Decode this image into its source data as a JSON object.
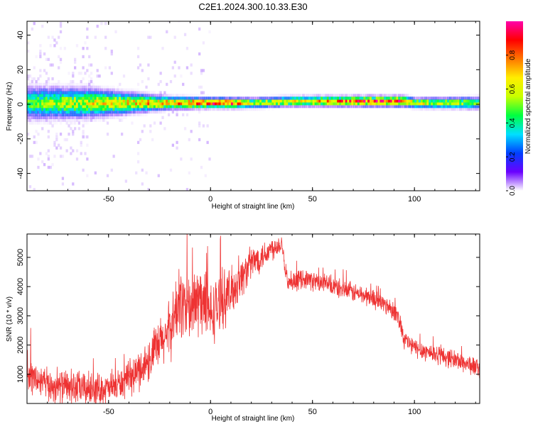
{
  "title": "C2E1.2024.300.10.33.E30",
  "colors": {
    "frame": "#000000",
    "snr_line": "#ee3333",
    "background": "#ffffff"
  },
  "chart_data": [
    {
      "type": "heatmap",
      "xlabel": "Height of straight line (km)",
      "ylabel": "Frequency (Hz)",
      "xlim": [
        -90,
        132
      ],
      "ylim": [
        -50,
        48
      ],
      "xticks": [
        -50,
        0,
        50,
        100
      ],
      "yticks": [
        -40,
        -20,
        0,
        20,
        40
      ],
      "grid": false,
      "colorbar": {
        "label": "Normalized spectral amplitude",
        "range": [
          0,
          1
        ],
        "ticks": [
          0.0,
          0.2,
          0.4,
          0.6,
          0.8
        ],
        "tick_labels": [
          "0.0",
          "0.2",
          "0.4",
          "0.6",
          "0.8"
        ],
        "colormap": [
          "#ffffff",
          "#6a00ff",
          "#0040ff",
          "#00e0ff",
          "#00ff40",
          "#c8ff00",
          "#ffee00",
          "#ff7700",
          "#ff0000",
          "#ff00aa"
        ]
      },
      "ridge": {
        "description_points_x": [
          -90,
          -60,
          -40,
          -20,
          0,
          10,
          20,
          40,
          60,
          80,
          94,
          100,
          132
        ],
        "center_freq": [
          0,
          0,
          0,
          0,
          0,
          0,
          0,
          1,
          1,
          1,
          1,
          0,
          0
        ],
        "half_width": [
          8,
          7,
          5,
          3,
          2.5,
          2.5,
          2.5,
          2.5,
          2.5,
          2.5,
          2.5,
          2.5,
          3
        ],
        "peak_amplitude": [
          0.45,
          0.6,
          0.65,
          0.75,
          0.85,
          0.85,
          0.55,
          0.65,
          0.75,
          0.85,
          0.9,
          0.6,
          0.5
        ]
      }
    },
    {
      "type": "line",
      "xlabel": "Height of straight line (km)",
      "ylabel": "SNR (10 * v/v)",
      "xlim": [
        -90,
        132
      ],
      "ylim": [
        0,
        5800
      ],
      "xticks": [
        -50,
        0,
        50,
        100
      ],
      "yticks": [
        1000,
        2000,
        3000,
        4000,
        5000
      ],
      "grid": false,
      "series": [
        {
          "envelope_x": [
            -90,
            -80,
            -70,
            -60,
            -50,
            -40,
            -30,
            -20,
            -15,
            -10,
            -5,
            0,
            5,
            10,
            20,
            30,
            35,
            38,
            45,
            60,
            70,
            80,
            90,
            93,
            95,
            100,
            110,
            120,
            132
          ],
          "envelope_y": [
            1000,
            600,
            550,
            500,
            500,
            800,
            1500,
            2500,
            3500,
            3200,
            3600,
            3000,
            3500,
            3800,
            4800,
            5300,
            5500,
            4000,
            4300,
            4000,
            3800,
            3600,
            3200,
            2800,
            2200,
            1900,
            1700,
            1500,
            1200
          ],
          "noise_amplitude": [
            700,
            700,
            700,
            700,
            600,
            700,
            900,
            1200,
            1500,
            1600,
            1500,
            1300,
            1200,
            1000,
            700,
            500,
            400,
            400,
            400,
            400,
            400,
            400,
            400,
            400,
            400,
            400,
            400,
            400,
            400
          ]
        }
      ]
    }
  ]
}
